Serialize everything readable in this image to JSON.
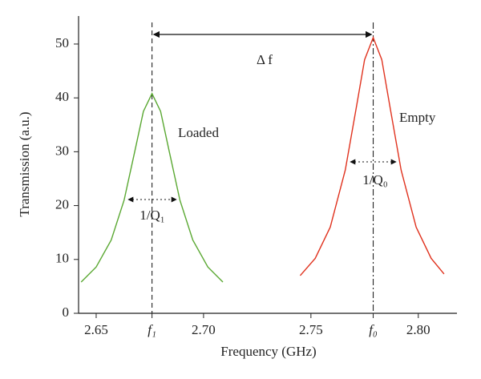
{
  "chart_data": {
    "type": "line",
    "xlabel": "Frequency (GHz)",
    "ylabel": "Transmission (a.u.)",
    "xlim": [
      2.6418,
      2.818
    ],
    "ylim": [
      0,
      55.2
    ],
    "xticks": [
      2.65,
      {
        "value": 2.676,
        "label": "f₁"
      },
      {
        "value": 2.7,
        "label": "2.70"
      },
      2.75,
      {
        "value": 2.779,
        "label": "f₀"
      },
      {
        "value": 2.8,
        "label": "2.80"
      }
    ],
    "yticks": [
      0,
      10,
      20,
      30,
      40,
      50
    ],
    "series": [
      {
        "color": "#5aa832",
        "x": [
          2.643,
          2.65,
          2.657,
          2.663,
          2.668,
          2.672,
          2.676,
          2.68,
          2.684,
          2.689,
          2.695,
          2.702,
          2.709
        ],
        "values": [
          5.8,
          8.6,
          13.6,
          21.0,
          30.1,
          37.5,
          40.8,
          37.5,
          30.1,
          21.0,
          13.6,
          8.6,
          5.8
        ]
      },
      {
        "color": "#e0321e",
        "x": [
          2.745,
          2.752,
          2.759,
          2.766,
          2.771,
          2.775,
          2.779,
          2.783,
          2.787,
          2.792,
          2.799,
          2.806,
          2.812
        ],
        "values": [
          7.0,
          10.2,
          16.0,
          26.6,
          37.9,
          47.1,
          51.2,
          47.1,
          37.9,
          26.6,
          16.0,
          10.2,
          7.3
        ]
      }
    ],
    "annotations": [
      "Δ f",
      "Loaded",
      "Empty",
      "1/Q₁",
      "1/Q₀"
    ]
  }
}
